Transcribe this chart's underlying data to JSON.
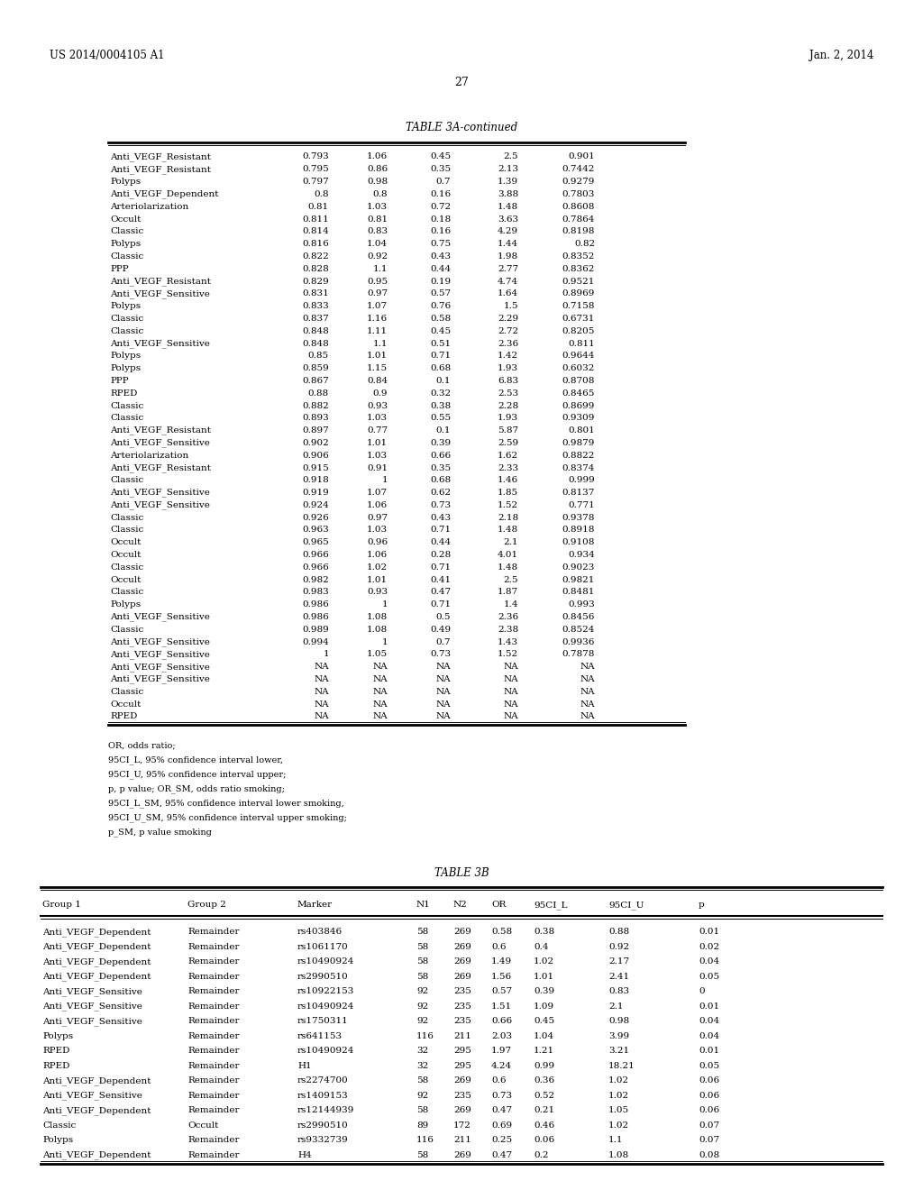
{
  "header_left": "US 2014/0004105 A1",
  "header_right": "Jan. 2, 2014",
  "page_number": "27",
  "table3a_title": "TABLE 3A-continued",
  "table3a_rows": [
    [
      "Anti_VEGF_Resistant",
      "0.793",
      "1.06",
      "0.45",
      "2.5",
      "0.901"
    ],
    [
      "Anti_VEGF_Resistant",
      "0.795",
      "0.86",
      "0.35",
      "2.13",
      "0.7442"
    ],
    [
      "Polyps",
      "0.797",
      "0.98",
      "0.7",
      "1.39",
      "0.9279"
    ],
    [
      "Anti_VEGF_Dependent",
      "0.8",
      "0.8",
      "0.16",
      "3.88",
      "0.7803"
    ],
    [
      "Arteriolarization",
      "0.81",
      "1.03",
      "0.72",
      "1.48",
      "0.8608"
    ],
    [
      "Occult",
      "0.811",
      "0.81",
      "0.18",
      "3.63",
      "0.7864"
    ],
    [
      "Classic",
      "0.814",
      "0.83",
      "0.16",
      "4.29",
      "0.8198"
    ],
    [
      "Polyps",
      "0.816",
      "1.04",
      "0.75",
      "1.44",
      "0.82"
    ],
    [
      "Classic",
      "0.822",
      "0.92",
      "0.43",
      "1.98",
      "0.8352"
    ],
    [
      "PPP",
      "0.828",
      "1.1",
      "0.44",
      "2.77",
      "0.8362"
    ],
    [
      "Anti_VEGF_Resistant",
      "0.829",
      "0.95",
      "0.19",
      "4.74",
      "0.9521"
    ],
    [
      "Anti_VEGF_Sensitive",
      "0.831",
      "0.97",
      "0.57",
      "1.64",
      "0.8969"
    ],
    [
      "Polyps",
      "0.833",
      "1.07",
      "0.76",
      "1.5",
      "0.7158"
    ],
    [
      "Classic",
      "0.837",
      "1.16",
      "0.58",
      "2.29",
      "0.6731"
    ],
    [
      "Classic",
      "0.848",
      "1.11",
      "0.45",
      "2.72",
      "0.8205"
    ],
    [
      "Anti_VEGF_Sensitive",
      "0.848",
      "1.1",
      "0.51",
      "2.36",
      "0.811"
    ],
    [
      "Polyps",
      "0.85",
      "1.01",
      "0.71",
      "1.42",
      "0.9644"
    ],
    [
      "Polyps",
      "0.859",
      "1.15",
      "0.68",
      "1.93",
      "0.6032"
    ],
    [
      "PPP",
      "0.867",
      "0.84",
      "0.1",
      "6.83",
      "0.8708"
    ],
    [
      "RPED",
      "0.88",
      "0.9",
      "0.32",
      "2.53",
      "0.8465"
    ],
    [
      "Classic",
      "0.882",
      "0.93",
      "0.38",
      "2.28",
      "0.8699"
    ],
    [
      "Classic",
      "0.893",
      "1.03",
      "0.55",
      "1.93",
      "0.9309"
    ],
    [
      "Anti_VEGF_Resistant",
      "0.897",
      "0.77",
      "0.1",
      "5.87",
      "0.801"
    ],
    [
      "Anti_VEGF_Sensitive",
      "0.902",
      "1.01",
      "0.39",
      "2.59",
      "0.9879"
    ],
    [
      "Arteriolarization",
      "0.906",
      "1.03",
      "0.66",
      "1.62",
      "0.8822"
    ],
    [
      "Anti_VEGF_Resistant",
      "0.915",
      "0.91",
      "0.35",
      "2.33",
      "0.8374"
    ],
    [
      "Classic",
      "0.918",
      "1",
      "0.68",
      "1.46",
      "0.999"
    ],
    [
      "Anti_VEGF_Sensitive",
      "0.919",
      "1.07",
      "0.62",
      "1.85",
      "0.8137"
    ],
    [
      "Anti_VEGF_Sensitive",
      "0.924",
      "1.06",
      "0.73",
      "1.52",
      "0.771"
    ],
    [
      "Classic",
      "0.926",
      "0.97",
      "0.43",
      "2.18",
      "0.9378"
    ],
    [
      "Classic",
      "0.963",
      "1.03",
      "0.71",
      "1.48",
      "0.8918"
    ],
    [
      "Occult",
      "0.965",
      "0.96",
      "0.44",
      "2.1",
      "0.9108"
    ],
    [
      "Occult",
      "0.966",
      "1.06",
      "0.28",
      "4.01",
      "0.934"
    ],
    [
      "Classic",
      "0.966",
      "1.02",
      "0.71",
      "1.48",
      "0.9023"
    ],
    [
      "Occult",
      "0.982",
      "1.01",
      "0.41",
      "2.5",
      "0.9821"
    ],
    [
      "Classic",
      "0.983",
      "0.93",
      "0.47",
      "1.87",
      "0.8481"
    ],
    [
      "Polyps",
      "0.986",
      "1",
      "0.71",
      "1.4",
      "0.993"
    ],
    [
      "Anti_VEGF_Sensitive",
      "0.986",
      "1.08",
      "0.5",
      "2.36",
      "0.8456"
    ],
    [
      "Classic",
      "0.989",
      "1.08",
      "0.49",
      "2.38",
      "0.8524"
    ],
    [
      "Anti_VEGF_Sensitive",
      "0.994",
      "1",
      "0.7",
      "1.43",
      "0.9936"
    ],
    [
      "Anti_VEGF_Sensitive",
      "1",
      "1.05",
      "0.73",
      "1.52",
      "0.7878"
    ],
    [
      "Anti_VEGF_Sensitive",
      "NA",
      "NA",
      "NA",
      "NA",
      "NA"
    ],
    [
      "Anti_VEGF_Sensitive",
      "NA",
      "NA",
      "NA",
      "NA",
      "NA"
    ],
    [
      "Classic",
      "NA",
      "NA",
      "NA",
      "NA",
      "NA"
    ],
    [
      "Occult",
      "NA",
      "NA",
      "NA",
      "NA",
      "NA"
    ],
    [
      "RPED",
      "NA",
      "NA",
      "NA",
      "NA",
      "NA"
    ]
  ],
  "footnotes": [
    "OR, odds ratio;",
    "95CI_L, 95% confidence interval lower,",
    "95CI_U, 95% confidence interval upper;",
    "p, p value; OR_SM, odds ratio smoking;",
    "95CI_L_SM, 95% confidence interval lower smoking,",
    "95CI_U_SM, 95% confidence interval upper smoking;",
    "p_SM, p value smoking"
  ],
  "table3b_title": "TABLE 3B",
  "table3b_headers": [
    "Group 1",
    "Group 2",
    "Marker",
    "N1",
    "N2",
    "OR",
    "95CI_L",
    "95CI_U",
    "p"
  ],
  "table3b_rows": [
    [
      "Anti_VEGF_Dependent",
      "Remainder",
      "rs403846",
      "58",
      "269",
      "0.58",
      "0.38",
      "0.88",
      "0.01"
    ],
    [
      "Anti_VEGF_Dependent",
      "Remainder",
      "rs1061170",
      "58",
      "269",
      "0.6",
      "0.4",
      "0.92",
      "0.02"
    ],
    [
      "Anti_VEGF_Dependent",
      "Remainder",
      "rs10490924",
      "58",
      "269",
      "1.49",
      "1.02",
      "2.17",
      "0.04"
    ],
    [
      "Anti_VEGF_Dependent",
      "Remainder",
      "rs2990510",
      "58",
      "269",
      "1.56",
      "1.01",
      "2.41",
      "0.05"
    ],
    [
      "Anti_VEGF_Sensitive",
      "Remainder",
      "rs10922153",
      "92",
      "235",
      "0.57",
      "0.39",
      "0.83",
      "0"
    ],
    [
      "Anti_VEGF_Sensitive",
      "Remainder",
      "rs10490924",
      "92",
      "235",
      "1.51",
      "1.09",
      "2.1",
      "0.01"
    ],
    [
      "Anti_VEGF_Sensitive",
      "Remainder",
      "rs1750311",
      "92",
      "235",
      "0.66",
      "0.45",
      "0.98",
      "0.04"
    ],
    [
      "Polyps",
      "Remainder",
      "rs641153",
      "116",
      "211",
      "2.03",
      "1.04",
      "3.99",
      "0.04"
    ],
    [
      "RPED",
      "Remainder",
      "rs10490924",
      "32",
      "295",
      "1.97",
      "1.21",
      "3.21",
      "0.01"
    ],
    [
      "RPED",
      "Remainder",
      "H1",
      "32",
      "295",
      "4.24",
      "0.99",
      "18.21",
      "0.05"
    ],
    [
      "Anti_VEGF_Dependent",
      "Remainder",
      "rs2274700",
      "58",
      "269",
      "0.6",
      "0.36",
      "1.02",
      "0.06"
    ],
    [
      "Anti_VEGF_Sensitive",
      "Remainder",
      "rs1409153",
      "92",
      "235",
      "0.73",
      "0.52",
      "1.02",
      "0.06"
    ],
    [
      "Anti_VEGF_Dependent",
      "Remainder",
      "rs12144939",
      "58",
      "269",
      "0.47",
      "0.21",
      "1.05",
      "0.06"
    ],
    [
      "Classic",
      "Occult",
      "rs2990510",
      "89",
      "172",
      "0.69",
      "0.46",
      "1.02",
      "0.07"
    ],
    [
      "Polyps",
      "Remainder",
      "rs9332739",
      "116",
      "211",
      "0.25",
      "0.06",
      "1.1",
      "0.07"
    ],
    [
      "Anti_VEGF_Dependent",
      "Remainder",
      "H4",
      "58",
      "269",
      "0.47",
      "0.2",
      "1.08",
      "0.08"
    ]
  ]
}
